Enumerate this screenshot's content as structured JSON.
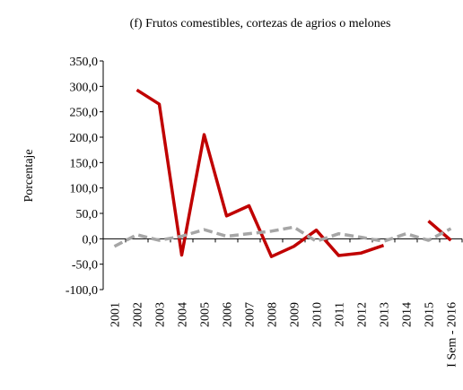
{
  "chart_data": {
    "type": "line",
    "title": "(f) Frutos comestibles, cortezas de agrios o melones",
    "y_label": "Porcentaje",
    "categories": [
      "2001",
      "2002",
      "2003",
      "2004",
      "2005",
      "2006",
      "2007",
      "2008",
      "2009",
      "2010",
      "2011",
      "2012",
      "2013",
      "2014",
      "2015",
      "I Sem - 2016"
    ],
    "series": [
      {
        "color": "#c00000",
        "dashed": false,
        "values": [
          null,
          293,
          265,
          -32,
          205,
          45,
          65,
          -35,
          -15,
          17,
          -33,
          -28,
          -13,
          null,
          35,
          -3
        ]
      },
      {
        "color": "#a6a6a6",
        "dashed": true,
        "values": [
          -15,
          8,
          -3,
          5,
          18,
          5,
          10,
          15,
          23,
          -5,
          10,
          3,
          -5,
          10,
          -3,
          20
        ]
      }
    ],
    "ylim": [
      -100,
      350
    ],
    "yticks": [
      {
        "value": -100,
        "label": "-100,0"
      },
      {
        "value": -50,
        "label": "-50,0"
      },
      {
        "value": 0,
        "label": "0,0"
      },
      {
        "value": 50,
        "label": "50,0"
      },
      {
        "value": 100,
        "label": "100,0"
      },
      {
        "value": 150,
        "label": "150,0"
      },
      {
        "value": 200,
        "label": "200,0"
      },
      {
        "value": 250,
        "label": "250,0"
      },
      {
        "value": 300,
        "label": "300,0"
      },
      {
        "value": 350,
        "label": "350,0"
      }
    ],
    "grid": false
  }
}
